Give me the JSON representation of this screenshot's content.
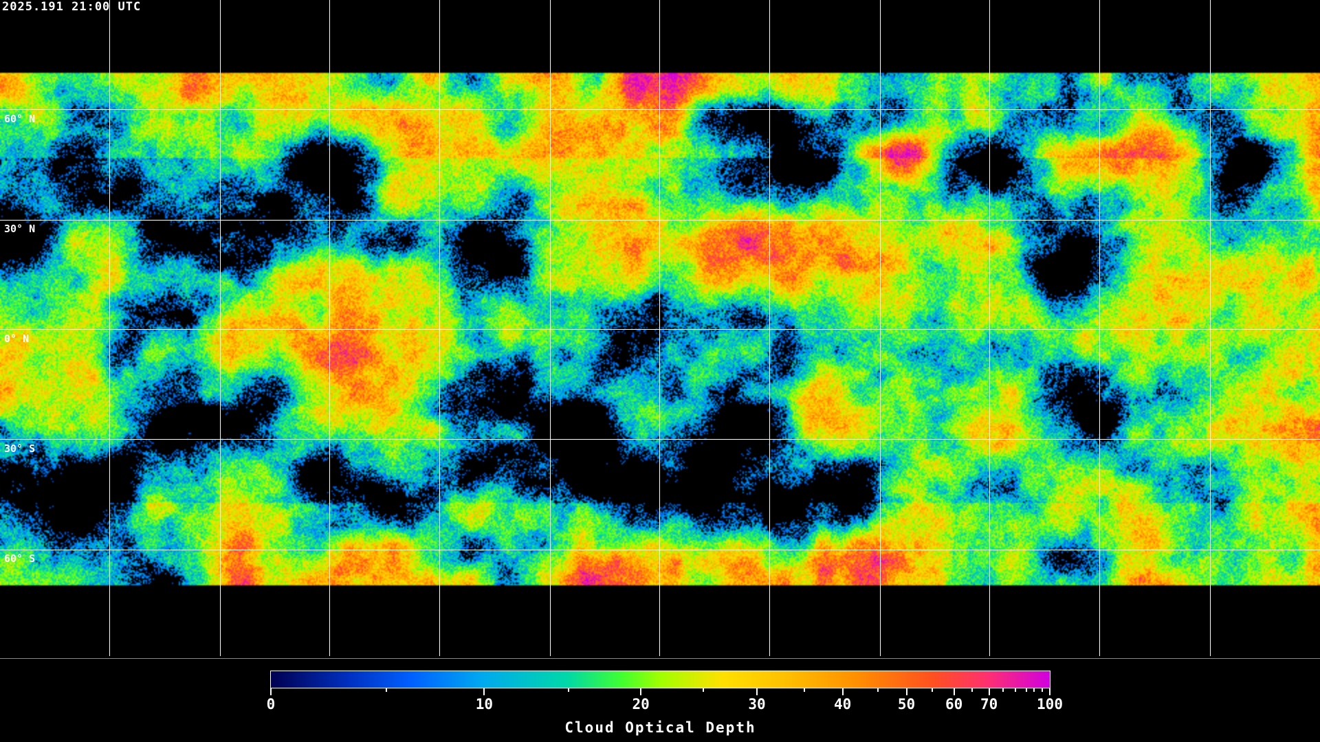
{
  "title": "2025.191 21:00 UTC",
  "map": {
    "projection": "equirectangular",
    "variable": "cloud optical depth",
    "latitude_labels": [
      "60° N",
      "30° N",
      "0° N",
      "30° S",
      "60° S"
    ],
    "gridline_color": "#ffffff",
    "background_color": "#000000"
  },
  "colorbar": {
    "title": "Cloud Optical Depth",
    "range": [
      0,
      100
    ],
    "tick_labels": [
      "0",
      "10",
      "20",
      "30",
      "40",
      "50",
      "60",
      "70",
      "100"
    ],
    "minor_ticks": [
      5,
      15,
      25,
      35,
      45,
      55,
      65,
      75,
      80,
      85,
      90,
      95
    ],
    "colors": [
      "#000050",
      "#0060ff",
      "#00a8f0",
      "#00d8a8",
      "#40ff30",
      "#a0ff00",
      "#ffe000",
      "#ffc000",
      "#ff9000",
      "#ff5020",
      "#ff3070",
      "#d000e0"
    ]
  }
}
